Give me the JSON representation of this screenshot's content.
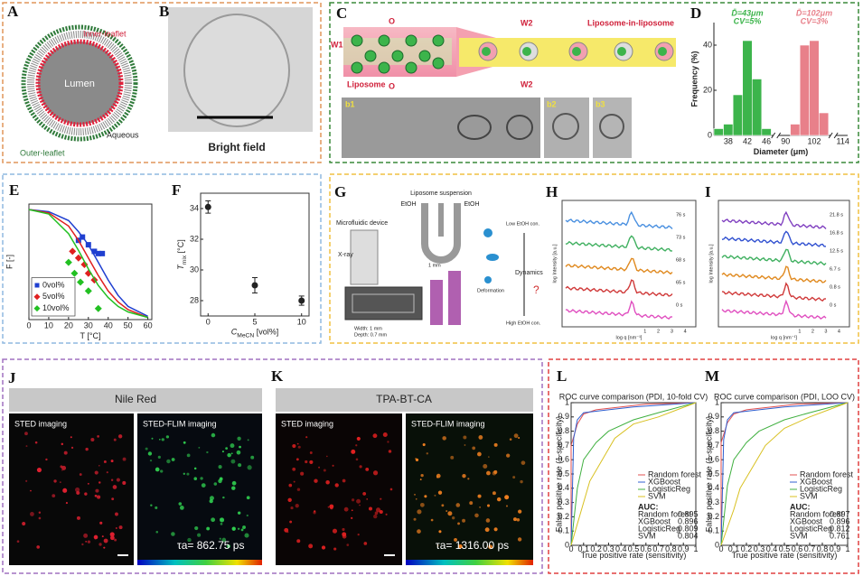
{
  "panels": {
    "A": {
      "letter": "A",
      "inner": "Inner-leaflet",
      "lumen": "Lumen",
      "aqueous": "Aqueous",
      "outer": "Outer-leaflet"
    },
    "B": {
      "letter": "B",
      "caption": "Bright field"
    },
    "C": {
      "letter": "C",
      "w1": "W1",
      "o_top": "O",
      "w2_top": "W2",
      "lil": "Liposome-in-liposome",
      "liposome": "Liposome",
      "o_bottom": "O",
      "w2_bottom": "W2",
      "b1": "b1",
      "b2": "b2",
      "b3": "b3"
    },
    "D": {
      "letter": "D"
    },
    "E": {
      "letter": "E"
    },
    "F": {
      "letter": "F"
    },
    "G": {
      "letter": "G",
      "suspension": "Liposome suspension",
      "etoh_left": "EtOH",
      "etoh_right": "EtOH",
      "device": "Microfluidic device",
      "xray": "X-ray",
      "mm": "1 mm",
      "low": "Low EtOH con.",
      "dynamics": "Dynamics",
      "deformation": "Deformation",
      "question": "?",
      "high": "High EtOH con.",
      "width": "Width: 1 mm",
      "depth": "Depth: 0.7 mm"
    },
    "H": {
      "letter": "H",
      "times": [
        "76 s",
        "73 s",
        "68 s",
        "65 s",
        "0 s"
      ],
      "xticks": [
        "1",
        "2",
        "3",
        "4"
      ],
      "xlabel": "log q [nm⁻¹]",
      "ylabel": "log Intensity [a.u.]"
    },
    "I": {
      "letter": "I",
      "times": [
        "21.8 s",
        "16.8 s",
        "12.5 s",
        "6.7 s",
        "0.8 s",
        "0 s"
      ],
      "xticks": [
        "1",
        "2",
        "3",
        "4"
      ],
      "xlabel": "log q [nm⁻¹]",
      "ylabel": "log Intensity [a.u.]"
    },
    "J": {
      "letter": "J",
      "header": "Nile Red",
      "left": "STED imaging",
      "right": "STED-FLIM imaging",
      "tau": "τa= 862.75 ps"
    },
    "K": {
      "letter": "K",
      "header": "TPA-BT-CA",
      "left": "STED imaging",
      "right": "STED-FLIM imaging",
      "tau": "τa= 1316.00 ps"
    },
    "L": {
      "letter": "L"
    },
    "M": {
      "letter": "M"
    }
  },
  "chart_data": [
    {
      "type": "bar",
      "ylabel": "Frequency (%)",
      "xlabel": "Diameter (μm)",
      "categories": [
        null,
        "38",
        null,
        "42",
        null,
        "46",
        null,
        "90",
        null,
        null,
        "102",
        null,
        null,
        "114"
      ],
      "series": [
        {
          "color": "#3cb44b",
          "values": [
            3,
            5,
            18,
            42,
            25,
            3,
            null,
            null,
            null,
            null,
            null,
            null,
            null,
            null
          ]
        },
        {
          "color": "#e8808a",
          "values": [
            null,
            null,
            null,
            null,
            null,
            null,
            null,
            null,
            5,
            40,
            42,
            10,
            null,
            null
          ]
        }
      ],
      "annotations": [
        "D̄=43μm",
        "CV=5%",
        "D̄=102μm",
        "CV=3%"
      ],
      "ylim": [
        0,
        50
      ],
      "yticks": [
        0,
        20,
        40
      ]
    },
    {
      "type": "line",
      "xlabel": "T [°C]",
      "ylabel": "F [-]",
      "xlim": [
        0,
        62
      ],
      "ylim": [
        0,
        1.05
      ],
      "xticks": [
        0,
        10,
        20,
        30,
        40,
        50,
        60
      ],
      "legend": "lower left",
      "fit_x": [
        0,
        10,
        20,
        25,
        30,
        35,
        40,
        45,
        50,
        60
      ],
      "series": [
        {
          "name": "0vol%",
          "color": "#1f3fd0",
          "marker": "square",
          "x": [
            25,
            27,
            30,
            33,
            35,
            37
          ],
          "values": [
            0.72,
            0.75,
            0.68,
            0.62,
            0.6,
            0.6
          ],
          "fit": [
            1,
            0.98,
            0.9,
            0.8,
            0.68,
            0.52,
            0.36,
            0.22,
            0.12,
            0.03
          ]
        },
        {
          "name": "5vol%",
          "color": "#e02020",
          "marker": "diamond",
          "x": [
            22,
            25,
            28,
            30,
            33
          ],
          "values": [
            0.62,
            0.56,
            0.5,
            0.42,
            0.36
          ],
          "fit": [
            1,
            0.97,
            0.85,
            0.72,
            0.56,
            0.4,
            0.26,
            0.16,
            0.09,
            0.02
          ]
        },
        {
          "name": "10vol%",
          "color": "#22c022",
          "marker": "diamond",
          "x": [
            20,
            23,
            26,
            30,
            35
          ],
          "values": [
            0.52,
            0.42,
            0.34,
            0.26,
            0.1
          ],
          "fit": [
            1,
            0.96,
            0.78,
            0.63,
            0.46,
            0.31,
            0.2,
            0.12,
            0.07,
            0.02
          ]
        }
      ]
    },
    {
      "type": "scatter",
      "xlabel": [
        "C",
        "MeCN",
        " [vol%]"
      ],
      "ylabel": [
        "T",
        "mix",
        " [°C]"
      ],
      "xlim": [
        -0.8,
        10.8
      ],
      "ylim": [
        27,
        35
      ],
      "xticks": [
        0,
        5,
        10
      ],
      "yticks": [
        28,
        30,
        32,
        34
      ],
      "color": "#222",
      "x": [
        0,
        5,
        10
      ],
      "values": [
        34.1,
        29.0,
        28.0
      ],
      "errors": [
        0.4,
        0.5,
        0.3
      ]
    },
    {
      "type": "line",
      "title": "ROC curve comparison (PDI, 10-fold CV)",
      "xlabel": "True positive rate (sensitivity)",
      "ylabel": "False positive rate (1-specificity)",
      "xlim": [
        0,
        1
      ],
      "ylim": [
        0,
        1
      ],
      "xticks": [
        0,
        0.1,
        0.2,
        0.3,
        0.4,
        0.5,
        0.6,
        0.7,
        0.8,
        0.9,
        1
      ],
      "yticks": [
        0,
        0.1,
        0.2,
        0.3,
        0.4,
        0.5,
        0.6,
        0.7,
        0.8,
        0.9,
        1
      ],
      "legend": "lower right",
      "auc_title": "AUC:",
      "auc": [
        0.895,
        0.896,
        0.809,
        0.804
      ],
      "series": [
        {
          "name": "Random forest",
          "color": "#e05050",
          "x": [
            0,
            0,
            0.05,
            0.1,
            0.2,
            0.4,
            0.6,
            1
          ],
          "values": [
            0,
            0.7,
            0.85,
            0.92,
            0.95,
            0.97,
            0.99,
            1
          ]
        },
        {
          "name": "XGBoost",
          "color": "#3060d0",
          "x": [
            0,
            0.02,
            0.05,
            0.1,
            0.3,
            0.5,
            1
          ],
          "values": [
            0,
            0.75,
            0.88,
            0.93,
            0.95,
            0.97,
            1
          ]
        },
        {
          "name": "LogisticReg",
          "color": "#40b040",
          "x": [
            0,
            0.05,
            0.1,
            0.2,
            0.3,
            0.5,
            0.7,
            1
          ],
          "values": [
            0,
            0.4,
            0.6,
            0.72,
            0.8,
            0.88,
            0.93,
            1
          ]
        },
        {
          "name": "SVM",
          "color": "#d8c020",
          "x": [
            0,
            0.1,
            0.15,
            0.25,
            0.35,
            0.5,
            0.7,
            1
          ],
          "values": [
            0,
            0.3,
            0.45,
            0.6,
            0.75,
            0.85,
            0.9,
            1
          ]
        }
      ]
    },
    {
      "type": "line",
      "title": "ROC curve comparison (PDI, LOO CV)",
      "xlabel": "True positive rate (sensitivity)",
      "ylabel": "False positive rate (1-specificity)",
      "xlim": [
        0,
        1
      ],
      "ylim": [
        0,
        1
      ],
      "xticks": [
        0,
        0.1,
        0.2,
        0.3,
        0.4,
        0.5,
        0.6,
        0.7,
        0.8,
        0.9,
        1
      ],
      "yticks": [
        0,
        0.1,
        0.2,
        0.3,
        0.4,
        0.5,
        0.6,
        0.7,
        0.8,
        0.9,
        1
      ],
      "legend": "lower right",
      "auc_title": "AUC:",
      "auc": [
        0.897,
        0.896,
        0.812,
        0.761
      ],
      "series": [
        {
          "name": "Random forest",
          "color": "#e05050",
          "x": [
            0,
            0,
            0.05,
            0.1,
            0.2,
            0.4,
            0.6,
            1
          ],
          "values": [
            0,
            0.72,
            0.86,
            0.92,
            0.95,
            0.97,
            0.99,
            1
          ]
        },
        {
          "name": "XGBoost",
          "color": "#3060d0",
          "x": [
            0,
            0.02,
            0.05,
            0.1,
            0.3,
            0.5,
            1
          ],
          "values": [
            0,
            0.74,
            0.88,
            0.93,
            0.95,
            0.97,
            1
          ]
        },
        {
          "name": "LogisticReg",
          "color": "#40b040",
          "x": [
            0,
            0.05,
            0.1,
            0.2,
            0.3,
            0.5,
            0.7,
            1
          ],
          "values": [
            0,
            0.42,
            0.6,
            0.72,
            0.8,
            0.88,
            0.93,
            1
          ]
        },
        {
          "name": "SVM",
          "color": "#d8c020",
          "x": [
            0,
            0.1,
            0.15,
            0.25,
            0.35,
            0.5,
            0.7,
            1
          ],
          "values": [
            0,
            0.25,
            0.4,
            0.55,
            0.7,
            0.82,
            0.9,
            1
          ]
        }
      ]
    }
  ]
}
